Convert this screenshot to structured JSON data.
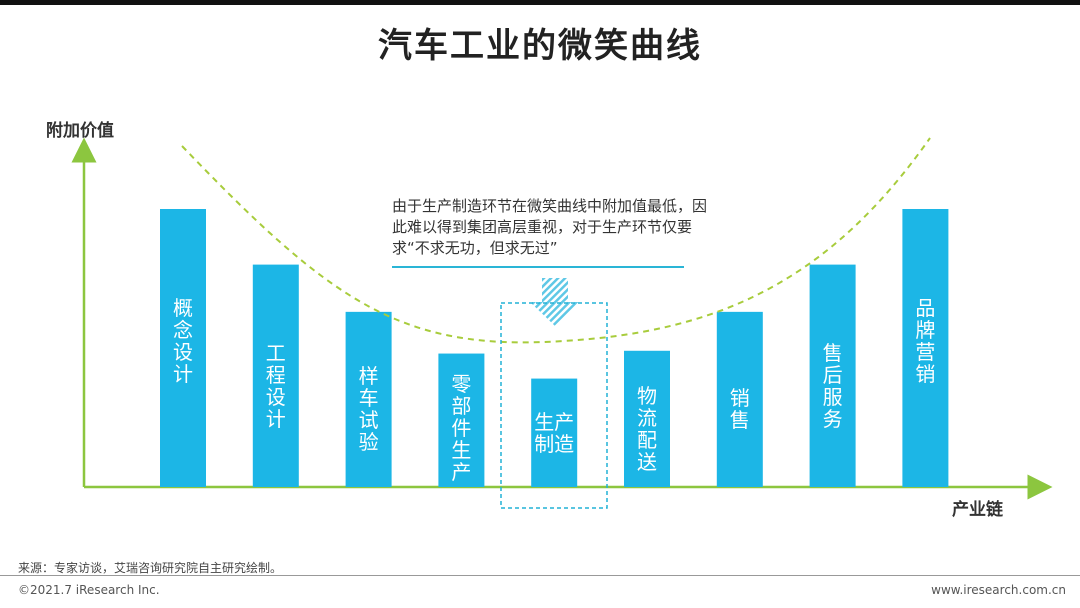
{
  "title": "汽车工业的微笑曲线",
  "chart_data": {
    "type": "bar",
    "ylabel": "附加价值",
    "xlabel": "产业链",
    "categories": [
      "概念设计",
      "工程设计",
      "样车试验",
      "零部件生产",
      "生产制造",
      "物流配送",
      "销售",
      "售后服务",
      "品牌营销"
    ],
    "values": [
      100,
      80,
      63,
      48,
      39,
      49,
      63,
      80,
      100
    ],
    "highlight_index": 4,
    "curve": "smile",
    "annotation": "由于生产制造环节在微笑曲线中附加值最低，因此难以得到集团高层重视，对于生产环节仅要求“不求无功，但求无过”"
  },
  "colors": {
    "bar": "#1cb6e6",
    "axis": "#8cc63f",
    "curve": "#a8cc3c",
    "highlight": "#22b2d6"
  },
  "footer": {
    "source": "来源：专家访谈，艾瑞咨询研究院自主研究绘制。",
    "copyright": "©2021.7 iResearch Inc.",
    "website": "www.iresearch.com.cn"
  }
}
